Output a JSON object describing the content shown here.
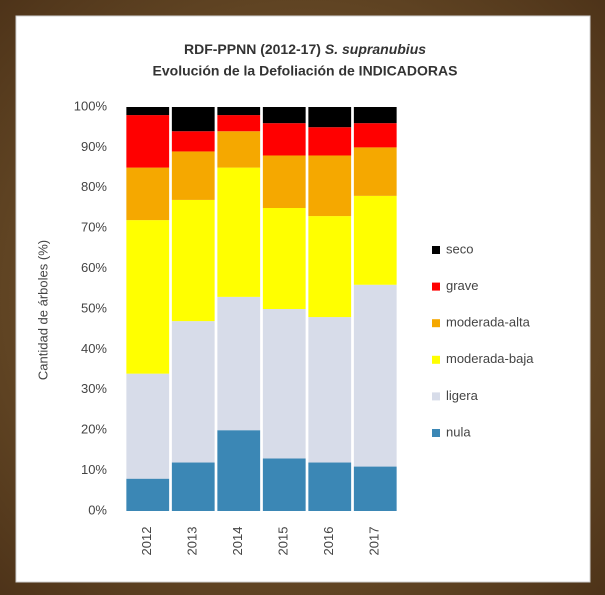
{
  "chart_data": {
    "type": "stacked_bar",
    "title": "RDF-PPNN (2012-17)",
    "title_species": "S. supranubius",
    "subtitle": "Evolución de la Defoliación de INDICADORAS",
    "y_label": "Cantidad de árboles (%)",
    "categories": [
      "2012",
      "2013",
      "2014",
      "2015",
      "2016",
      "2017"
    ],
    "series": [
      {
        "name": "nula",
        "color": "#3b87b5",
        "values": [
          8,
          12,
          20,
          13,
          12,
          11
        ]
      },
      {
        "name": "ligera",
        "color": "#d7dce9",
        "values": [
          26,
          35,
          33,
          37,
          36,
          45
        ]
      },
      {
        "name": "moderada-baja",
        "color": "#ffff00",
        "values": [
          38,
          30,
          32,
          25,
          25,
          22
        ]
      },
      {
        "name": "moderada-alta",
        "color": "#f5a800",
        "values": [
          13,
          12,
          9,
          13,
          15,
          12
        ]
      },
      {
        "name": "grave",
        "color": "#ff0000",
        "values": [
          13,
          5,
          4,
          8,
          7,
          6
        ]
      },
      {
        "name": "seco",
        "color": "#000000",
        "values": [
          2,
          6,
          2,
          4,
          5,
          4
        ]
      }
    ],
    "ylim": [
      0,
      100
    ],
    "yticks": [
      {
        "value": 0,
        "label": "0%"
      },
      {
        "value": 10,
        "label": "10%"
      },
      {
        "value": 20,
        "label": "20%"
      },
      {
        "value": 30,
        "label": "30%"
      },
      {
        "value": 40,
        "label": "40%"
      },
      {
        "value": 50,
        "label": "50%"
      },
      {
        "value": 60,
        "label": "60%"
      },
      {
        "value": 70,
        "label": "70%"
      },
      {
        "value": 80,
        "label": "80%"
      },
      {
        "value": 90,
        "label": "90%"
      },
      {
        "value": 100,
        "label": "100%"
      }
    ],
    "grid": false,
    "legend": "right"
  }
}
